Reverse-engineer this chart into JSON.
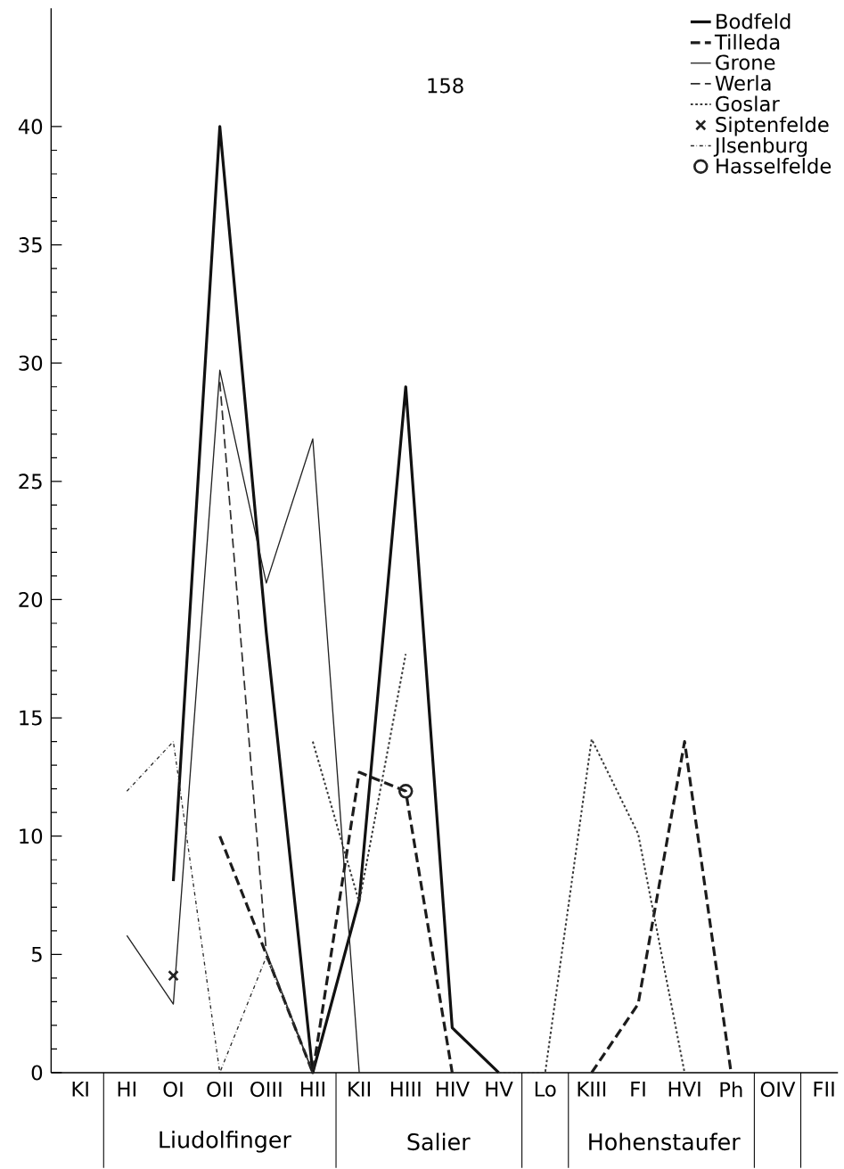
{
  "chart_data": {
    "type": "line",
    "categories": [
      "KI",
      "HI",
      "OI",
      "OII",
      "OIII",
      "HII",
      "KII",
      "HIII",
      "HIV",
      "HV",
      "Lo",
      "KIII",
      "FI",
      "HVI",
      "Ph",
      "OIV",
      "FII"
    ],
    "ylim": [
      0,
      45
    ],
    "yticks": [
      0,
      5,
      10,
      15,
      20,
      25,
      30,
      35,
      40
    ],
    "legend": "top right",
    "grid": false,
    "series": [
      {
        "name": "Bodfeld",
        "color": "#111111",
        "line_style": "solid",
        "values": [
          null,
          null,
          8.1,
          40,
          18.6,
          0,
          7.3,
          29,
          1.9,
          0,
          null,
          null,
          null,
          null,
          null,
          null,
          null
        ]
      },
      {
        "name": "Tilleda",
        "color": "#1c1c1c",
        "line_style": "dashed",
        "values": [
          null,
          null,
          null,
          10,
          5,
          0,
          12.7,
          11.9,
          0,
          null,
          null,
          0,
          2.9,
          14,
          0,
          null,
          null
        ]
      },
      {
        "name": "Grone",
        "color": "#222222",
        "line_style": "solid",
        "values": [
          null,
          5.8,
          2.9,
          29.7,
          20.7,
          26.8,
          0,
          null,
          null,
          null,
          null,
          null,
          null,
          null,
          null,
          null,
          null
        ]
      },
      {
        "name": "Werla",
        "color": "#2e2e2e",
        "line_style": "dashed",
        "values": [
          null,
          null,
          null,
          29.2,
          5.1,
          0,
          null,
          null,
          null,
          null,
          null,
          null,
          null,
          null,
          null,
          null,
          null
        ]
      },
      {
        "name": "Goslar",
        "color": "#383838",
        "line_style": "dotted",
        "values": [
          null,
          null,
          null,
          null,
          null,
          14,
          7.2,
          17.7,
          null,
          0,
          0,
          14.1,
          10.1,
          0,
          null,
          null,
          null
        ]
      },
      {
        "name": "Siptenfelde",
        "color": "#222222",
        "line_style": "none",
        "marker": "cross",
        "values": [
          null,
          null,
          4.1,
          null,
          null,
          null,
          null,
          null,
          null,
          null,
          null,
          null,
          null,
          null,
          null,
          null,
          null
        ]
      },
      {
        "name": "Jlsenburg",
        "color": "#2a2a2a",
        "line_style": "dashdot",
        "values": [
          null,
          11.9,
          14,
          0,
          4.9,
          0,
          null,
          null,
          null,
          null,
          null,
          null,
          null,
          null,
          null,
          null,
          null
        ]
      },
      {
        "name": "Hasselfelde",
        "color": "#222222",
        "line_style": "none",
        "marker": "circle",
        "values": [
          null,
          null,
          null,
          null,
          null,
          null,
          null,
          11.9,
          null,
          null,
          null,
          null,
          null,
          null,
          null,
          null,
          null
        ]
      }
    ],
    "annotations": [
      "158",
      "Liudolfinger",
      "Salier",
      "Hohenstaufer"
    ]
  }
}
